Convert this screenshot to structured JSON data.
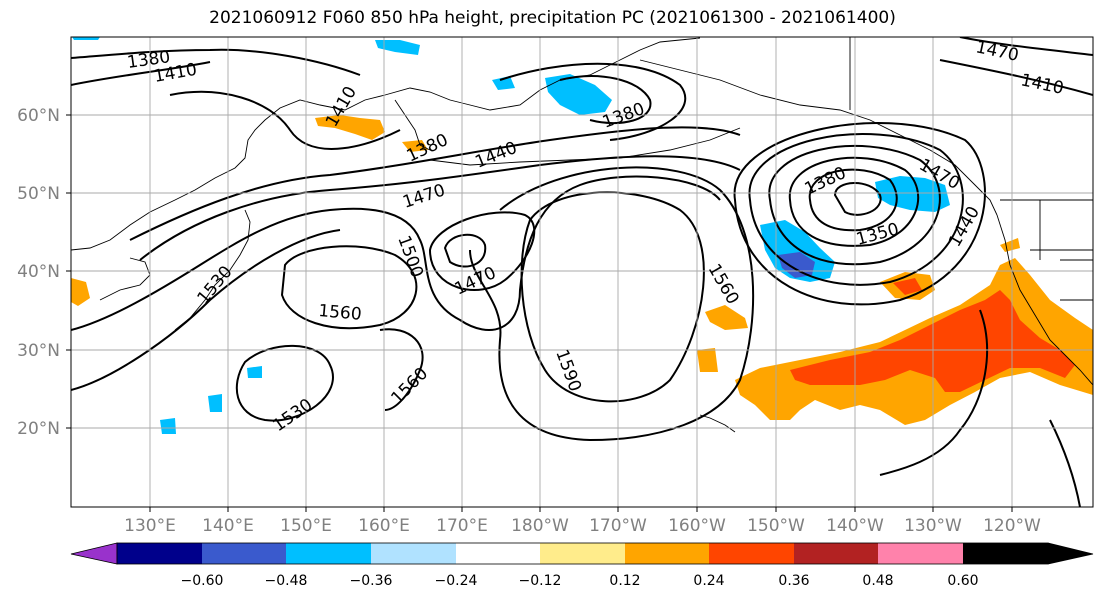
{
  "title": "2021060912 F060 850 hPa height, precipitation PC (2021061300 - 2021061400)",
  "lat_labels": [
    "60°N",
    "50°N",
    "40°N",
    "30°N",
    "20°N"
  ],
  "lon_labels": [
    "130°E",
    "140°E",
    "150°E",
    "160°E",
    "170°E",
    "180°W",
    "170°W",
    "160°W",
    "150°W",
    "140°W",
    "130°W",
    "120°W"
  ],
  "contour_labels": [
    "1380",
    "1410",
    "1410",
    "1380",
    "1380",
    "1440",
    "1470",
    "1500",
    "1470",
    "1560",
    "1530",
    "1560",
    "1530",
    "1590",
    "1560",
    "1380",
    "1350",
    "1440",
    "1470",
    "1410",
    "1470"
  ],
  "colorbar": {
    "ticks": [
      "−0.60",
      "−0.48",
      "−0.36",
      "−0.24",
      "−0.12",
      "0.12",
      "0.24",
      "0.36",
      "0.48",
      "0.60"
    ],
    "colors": [
      "#9932cc",
      "#00008b",
      "#3a5acd",
      "#00bfff",
      "#b0e2ff",
      "#ffffff",
      "#ffec8b",
      "#ffa500",
      "#ff4500",
      "#b22222",
      "#ff82ab"
    ]
  },
  "colors": {
    "line": "#000000",
    "grid": "#aaaaaa",
    "tick_text": "#808080"
  }
}
